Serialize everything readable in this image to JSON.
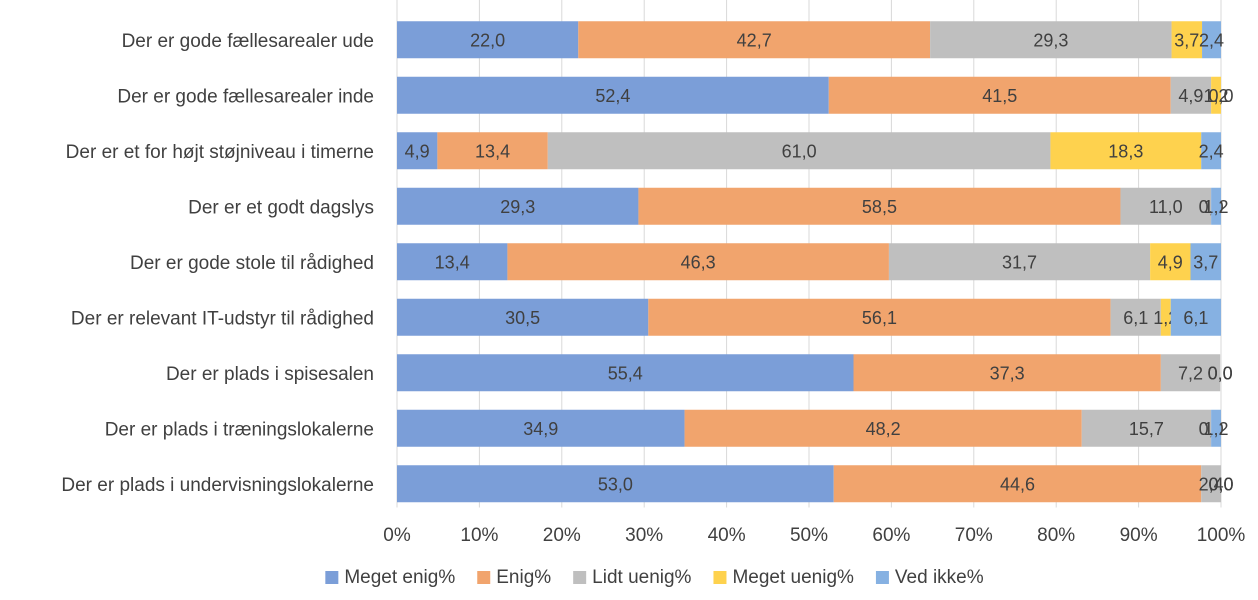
{
  "chart_data": {
    "type": "bar",
    "orientation": "horizontal",
    "stacked": "percent",
    "categories": [
      "Der er gode fællesarealer ude",
      "Der er gode fællesarealer inde",
      "Der er et for højt støjniveau i timerne",
      "Der er et godt dagslys",
      "Der er gode stole til rådighed",
      "Der er relevant IT-udstyr til rådighed",
      "Der er plads i spisesalen",
      "Der er plads i træningslokalerne",
      "Der er plads i undervisningslokalerne"
    ],
    "series": [
      {
        "name": "Meget enig%",
        "color": "#7b9ed8",
        "values": [
          22.0,
          52.4,
          4.9,
          29.3,
          13.4,
          30.5,
          55.4,
          34.9,
          53.0
        ],
        "labels": [
          "22,0",
          "52,4",
          "4,9",
          "29,3",
          "13,4",
          "30,5",
          "55,4",
          "34,9",
          "53,0"
        ]
      },
      {
        "name": "Enig%",
        "color": "#f1a46d",
        "values": [
          42.7,
          41.5,
          13.4,
          58.5,
          46.3,
          56.1,
          37.3,
          48.2,
          44.6
        ],
        "labels": [
          "42,7",
          "41,5",
          "13,4",
          "58,5",
          "46,3",
          "56,1",
          "37,3",
          "48,2",
          "44,6"
        ]
      },
      {
        "name": "Lidt uenig%",
        "color": "#bfbfbf",
        "values": [
          29.3,
          4.9,
          61.0,
          11.0,
          31.7,
          6.1,
          7.2,
          15.7,
          2.4
        ],
        "labels": [
          "29,3",
          "4,9",
          "61,0",
          "11,0",
          "31,7",
          "6,1",
          "7,2",
          "15,7",
          "2,4"
        ]
      },
      {
        "name": "Meget uenig%",
        "color": "#fed24e",
        "values": [
          3.7,
          1.2,
          18.3,
          0.0,
          4.9,
          1.2,
          0.0,
          0.0,
          0.0
        ],
        "labels": [
          "3,7",
          "1,2",
          "18,3",
          "0,0",
          "4,9",
          "1,2",
          "0,0",
          "0,0",
          "0,0"
        ]
      },
      {
        "name": "Ved ikke%",
        "color": "#86b1e2",
        "values": [
          2.4,
          0.0,
          2.4,
          1.2,
          3.7,
          6.1,
          0.0,
          1.2,
          0.0
        ],
        "labels": [
          "2,4",
          "0,0",
          "2,4",
          "1,2",
          "3,7",
          "6,1",
          "0,0",
          "1,2",
          "0,0"
        ]
      }
    ],
    "xaxis": {
      "ticks": [
        "0%",
        "10%",
        "20%",
        "30%",
        "40%",
        "50%",
        "60%",
        "70%",
        "80%",
        "90%",
        "100%"
      ],
      "range": [
        0,
        100
      ]
    },
    "legend_position": "bottom",
    "grid": true
  }
}
